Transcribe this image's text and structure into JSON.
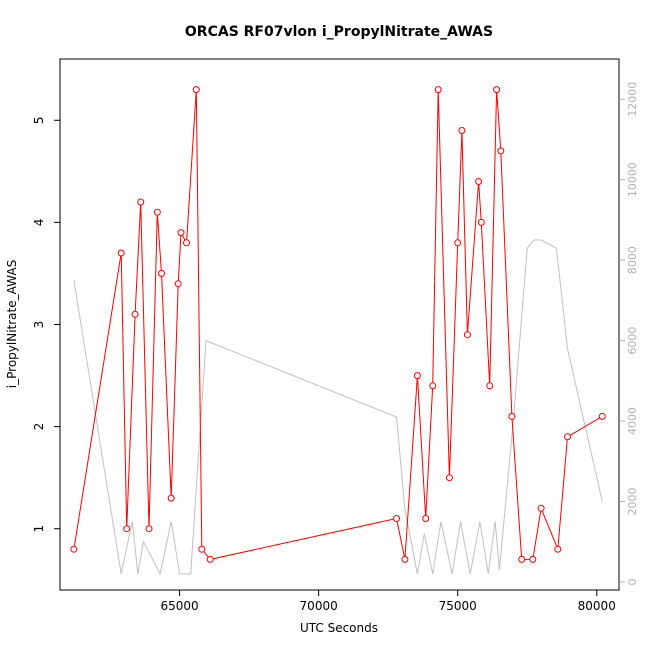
{
  "chart_data": {
    "type": "line",
    "title": "ORCAS RF07vlon i_PropylNitrate_AWAS",
    "xlabel": "UTC Seconds",
    "ylabel": "i_PropylNitrate_AWAS",
    "xlim": [
      60700,
      80800
    ],
    "ylim": [
      0.4,
      5.6
    ],
    "y2lim": [
      -200,
      13000
    ],
    "x_ticks": [
      65000,
      70000,
      75000,
      80000
    ],
    "y_ticks": [
      1,
      2,
      3,
      4,
      5
    ],
    "y2_ticks": [
      0,
      2000,
      4000,
      6000,
      8000,
      10000,
      12000
    ],
    "series": [
      {
        "color": "#ff0000",
        "marker": "open-circle",
        "axis": "left",
        "x": [
          61200,
          62900,
          63100,
          63400,
          63600,
          63900,
          64200,
          64350,
          64700,
          64950,
          65050,
          65250,
          65600,
          65800,
          66100,
          72800,
          73100,
          73550,
          73850,
          74100,
          74300,
          74700,
          75000,
          75150,
          75350,
          75750,
          75850,
          76150,
          76400,
          76550,
          76950,
          77300,
          77700,
          78000,
          78600,
          78950,
          80200
        ],
        "y": [
          0.8,
          3.7,
          1.0,
          3.1,
          4.2,
          1.0,
          4.1,
          3.5,
          1.3,
          3.4,
          3.9,
          3.8,
          5.3,
          0.8,
          0.7,
          1.1,
          0.7,
          2.5,
          1.1,
          2.4,
          5.3,
          1.5,
          3.8,
          4.9,
          2.9,
          4.4,
          4.0,
          2.4,
          5.3,
          4.7,
          2.1,
          0.7,
          0.7,
          1.2,
          0.8,
          1.9,
          2.1
        ]
      },
      {
        "color": "#c0c0c0",
        "marker": "none",
        "axis": "right",
        "x": [
          61200,
          62900,
          63300,
          63500,
          63700,
          64300,
          64700,
          65000,
          65400,
          65950,
          72800,
          73100,
          73550,
          73800,
          74100,
          74400,
          74800,
          75100,
          75450,
          75800,
          76100,
          76350,
          76500,
          77000,
          77500,
          77750,
          78000,
          78550,
          78950,
          80200
        ],
        "y": [
          7500,
          200,
          1500,
          200,
          1000,
          200,
          1500,
          200,
          200,
          6000,
          4100,
          1800,
          200,
          1200,
          200,
          1500,
          200,
          1500,
          200,
          1500,
          200,
          1500,
          300,
          4000,
          8300,
          8500,
          8500,
          8300,
          5800,
          2000
        ]
      }
    ]
  }
}
